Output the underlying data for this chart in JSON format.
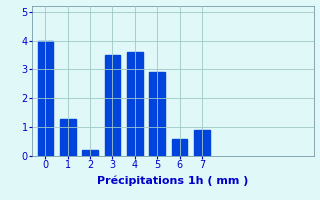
{
  "categories": [
    0,
    1,
    2,
    3,
    4,
    5,
    6,
    7
  ],
  "values": [
    4.0,
    1.3,
    0.2,
    3.5,
    3.6,
    2.9,
    0.6,
    0.9
  ],
  "bar_color": "#0044dd",
  "background_color": "#e0f8f8",
  "xlabel": "Précipitations 1h ( mm )",
  "ylim": [
    0,
    5.2
  ],
  "xlim": [
    -0.6,
    12.0
  ],
  "yticks": [
    0,
    1,
    2,
    3,
    4,
    5
  ],
  "xticks": [
    0,
    1,
    2,
    3,
    4,
    5,
    6,
    7
  ],
  "grid_color": "#a0c8c8",
  "xlabel_color": "#0000cc",
  "tick_color": "#0000cc",
  "xlabel_fontsize": 8,
  "tick_fontsize": 7,
  "bar_width": 0.7
}
